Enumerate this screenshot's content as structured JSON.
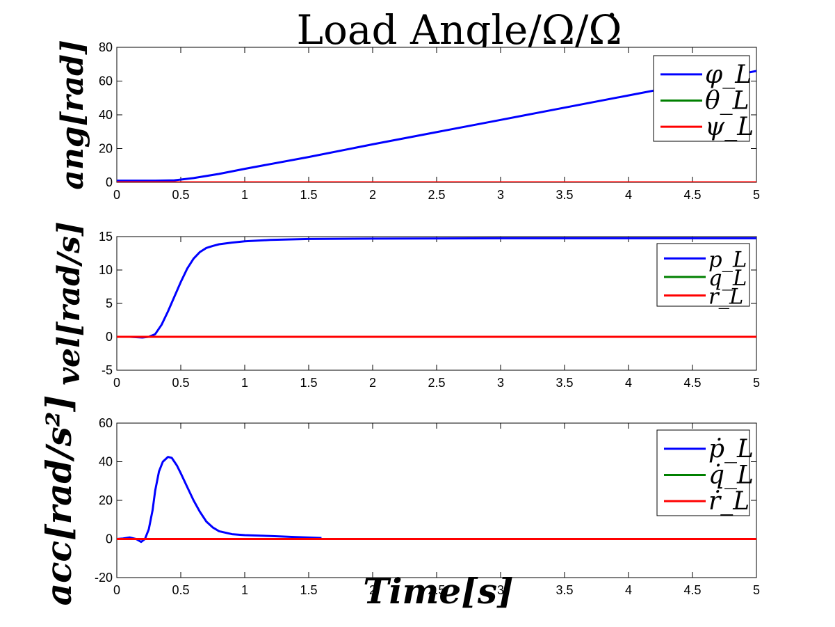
{
  "title": "Load Angle/Ω/Ω̇",
  "xlabel": "Time[s]",
  "colors": {
    "blue": "#0000ff",
    "green": "#008000",
    "red": "#ff0000"
  },
  "chart_data": [
    {
      "type": "line",
      "ylabel": "ang[rad]",
      "xlim": [
        0,
        5
      ],
      "ylim": [
        0,
        80
      ],
      "xticks": [
        0,
        0.5,
        1,
        1.5,
        2,
        2.5,
        3,
        3.5,
        4,
        4.5,
        5
      ],
      "yticks": [
        0,
        20,
        40,
        60,
        80
      ],
      "legend_position": "top-right",
      "series": [
        {
          "name": "φ_L",
          "color": "#0000ff",
          "x": [
            0,
            0.3,
            0.45,
            0.6,
            0.8,
            1.0,
            1.5,
            2.0,
            3.0,
            4.0,
            5.0
          ],
          "y": [
            1,
            1,
            1.2,
            2.5,
            5,
            8,
            15,
            22.5,
            37,
            51.5,
            66
          ]
        },
        {
          "name": "θ_L",
          "color": "#008000",
          "x": [
            0,
            5
          ],
          "y": [
            0,
            0
          ]
        },
        {
          "name": "ψ_L",
          "color": "#ff0000",
          "x": [
            0,
            5
          ],
          "y": [
            0,
            0
          ]
        }
      ]
    },
    {
      "type": "line",
      "ylabel": "vel[rad/s]",
      "xlim": [
        0,
        5
      ],
      "ylim": [
        -5,
        15
      ],
      "xticks": [
        0,
        0.5,
        1,
        1.5,
        2,
        2.5,
        3,
        3.5,
        4,
        4.5,
        5
      ],
      "yticks": [
        -5,
        0,
        5,
        10,
        15
      ],
      "legend_position": "top-right",
      "series": [
        {
          "name": "p_L",
          "color": "#0000ff",
          "x": [
            0,
            0.1,
            0.2,
            0.25,
            0.3,
            0.35,
            0.4,
            0.45,
            0.5,
            0.55,
            0.6,
            0.65,
            0.7,
            0.75,
            0.8,
            0.9,
            1.0,
            1.2,
            1.5,
            2.0,
            3.0,
            5.0
          ],
          "y": [
            0,
            0,
            -0.1,
            0,
            0.4,
            1.8,
            3.8,
            6.0,
            8.2,
            10.2,
            11.7,
            12.7,
            13.3,
            13.6,
            13.85,
            14.1,
            14.3,
            14.5,
            14.65,
            14.7,
            14.75,
            14.75
          ]
        },
        {
          "name": "q_L",
          "color": "#008000",
          "x": [
            0,
            5
          ],
          "y": [
            0,
            0
          ]
        },
        {
          "name": "r_L",
          "color": "#ff0000",
          "x": [
            0,
            5
          ],
          "y": [
            0,
            0
          ]
        }
      ]
    },
    {
      "type": "line",
      "ylabel": "acc[rad/s²]",
      "xlim": [
        0,
        5
      ],
      "ylim": [
        -20,
        60
      ],
      "xticks": [
        0,
        0.5,
        1,
        1.5,
        2,
        2.5,
        3,
        3.5,
        4,
        4.5,
        5
      ],
      "yticks": [
        -20,
        0,
        20,
        40,
        60
      ],
      "legend_position": "top-right",
      "series": [
        {
          "name": "ṗ_L",
          "color": "#0000ff",
          "x": [
            0,
            0.05,
            0.1,
            0.15,
            0.19,
            0.22,
            0.25,
            0.28,
            0.3,
            0.33,
            0.36,
            0.4,
            0.43,
            0.47,
            0.5,
            0.55,
            0.6,
            0.65,
            0.7,
            0.75,
            0.8,
            0.9,
            1.0,
            1.2,
            1.4,
            1.6
          ],
          "y": [
            0,
            0.3,
            0.8,
            0,
            -1.5,
            0,
            5,
            15,
            25,
            35,
            40,
            42.5,
            42,
            38,
            34,
            27,
            20,
            14,
            9,
            6,
            4,
            2.5,
            2,
            1.5,
            1,
            0.5
          ]
        },
        {
          "name": "q̇_L",
          "color": "#008000",
          "x": [
            0,
            5
          ],
          "y": [
            0,
            0
          ]
        },
        {
          "name": "ṙ_L",
          "color": "#ff0000",
          "x": [
            0,
            5
          ],
          "y": [
            0,
            0
          ]
        }
      ]
    }
  ]
}
